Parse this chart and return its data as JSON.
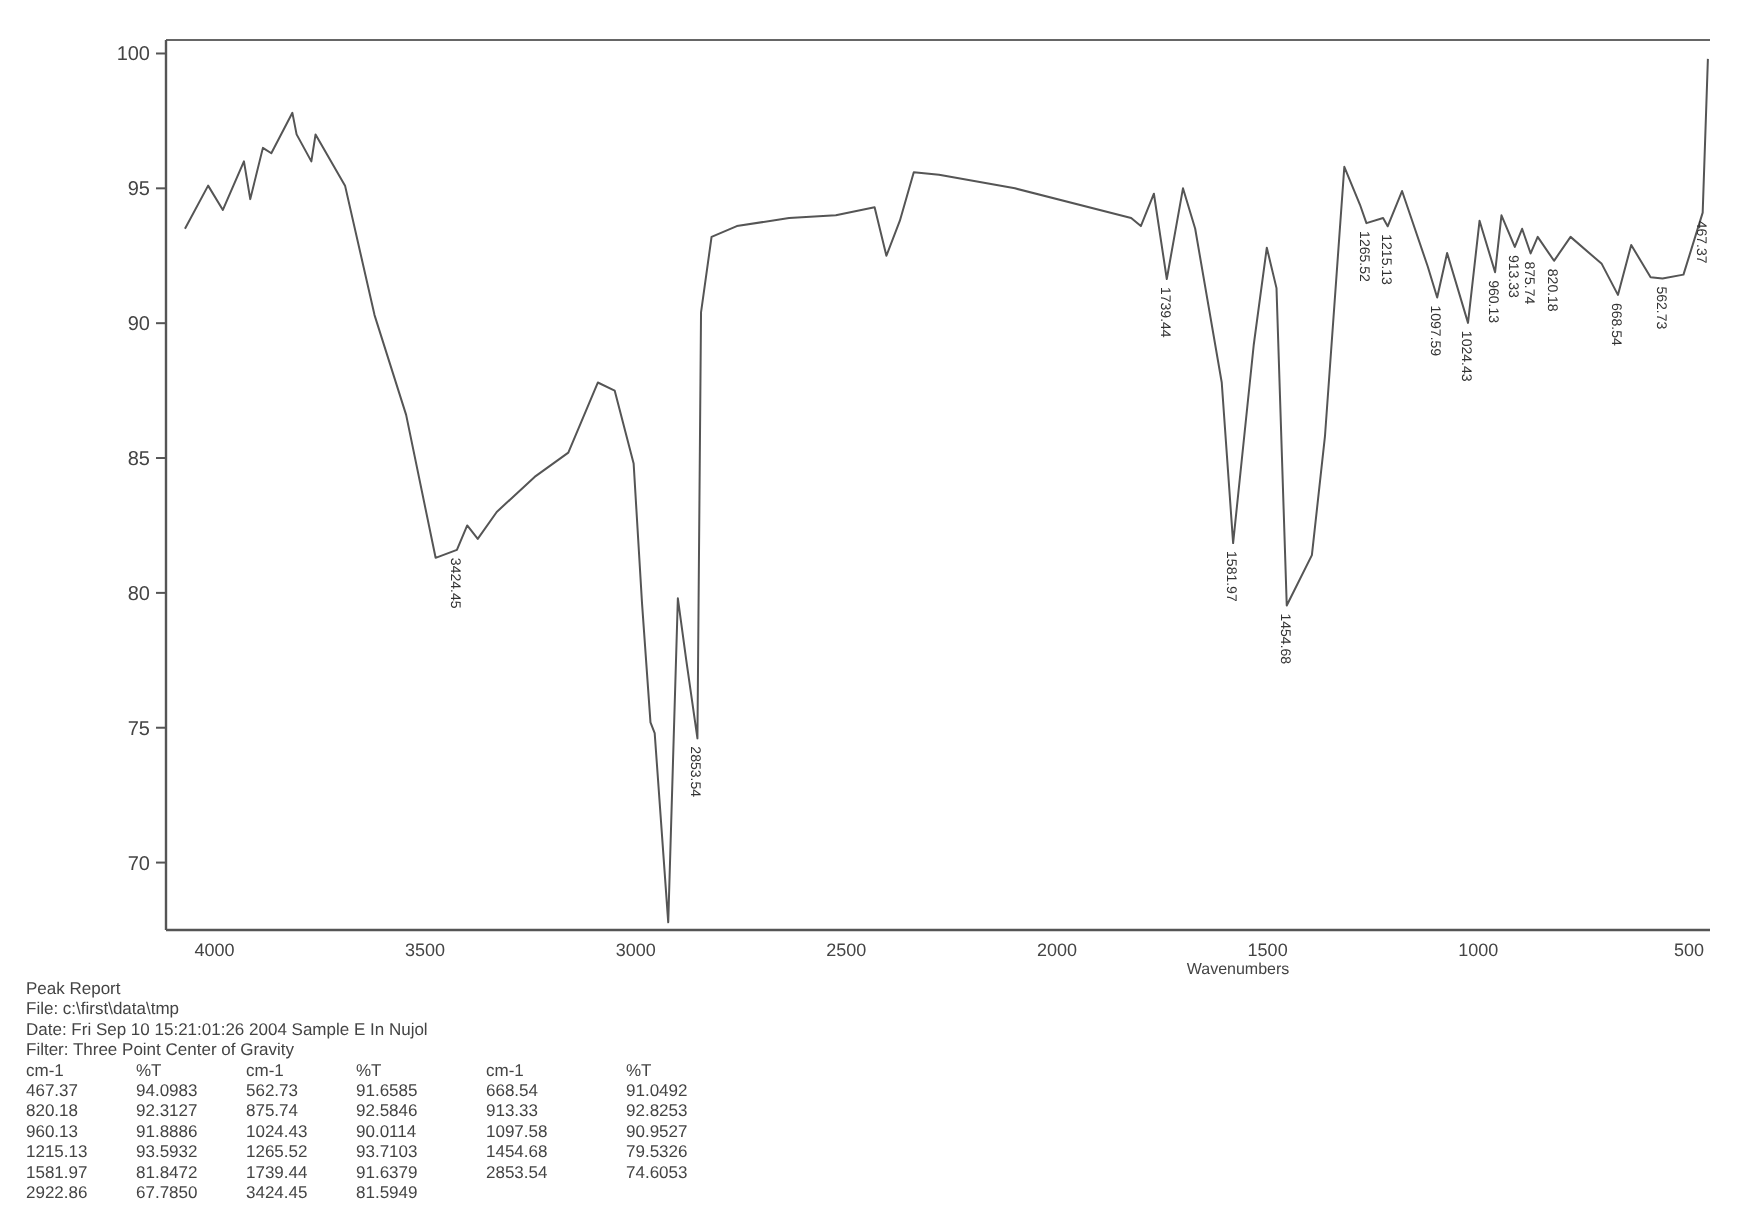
{
  "chart_data": {
    "type": "line",
    "xlabel": "Wavenumbers",
    "xlim": [
      4115,
      450
    ],
    "xticks": [
      4000,
      3500,
      3000,
      2500,
      2000,
      1500,
      1000,
      500
    ],
    "ylim": [
      67.5,
      100.5
    ],
    "yticks": [
      70,
      75,
      80,
      85,
      90,
      95,
      100
    ],
    "grid": false,
    "marker": "none",
    "line_style": "solid",
    "series": [
      {
        "color": "#555555",
        "x": [
          4070,
          4015,
          3980,
          3930,
          3915,
          3885,
          3865,
          3815,
          3805,
          3770,
          3760,
          3690,
          3620,
          3545,
          3475,
          3424.45,
          3400,
          3375,
          3330,
          3240,
          3160,
          3090,
          3050,
          3005,
          2985,
          2965,
          2955,
          2922.86,
          2900,
          2880,
          2853.54,
          2845,
          2820,
          2760,
          2636,
          2525,
          2433,
          2405,
          2373,
          2340,
          2280,
          2100,
          1824,
          1801,
          1770,
          1739.44,
          1701,
          1672,
          1609,
          1581.97,
          1533,
          1502,
          1479,
          1454.68,
          1395,
          1364,
          1318,
          1281,
          1265.52,
          1226,
          1215.13,
          1181,
          1120,
          1097.58,
          1074,
          1024.43,
          997,
          960.13,
          945,
          913.33,
          896,
          875.74,
          859,
          820.18,
          781,
          707,
          668.54,
          637,
          591,
          562.73,
          513,
          467.37,
          455
        ],
        "values": [
          93.5,
          95.1,
          94.2,
          96,
          94.6,
          96.5,
          96.3,
          97.8,
          97,
          96,
          97,
          95.1,
          90.3,
          86.6,
          81.3,
          81.5949,
          82.5,
          82,
          83,
          84.3,
          85.2,
          87.8,
          87.5,
          84.8,
          79.6,
          75.2,
          74.8,
          67.785,
          79.8,
          77.5,
          74.6053,
          90.4,
          93.2,
          93.6,
          93.9,
          94,
          94.3,
          92.5,
          93.8,
          95.6,
          95.5,
          95,
          93.9,
          93.6,
          94.8,
          91.6379,
          95,
          93.5,
          87.8,
          81.8472,
          89.2,
          92.8,
          91.3,
          79.5326,
          81.4,
          85.8,
          95.8,
          94.4,
          93.7103,
          93.9,
          93.5932,
          94.9,
          92.1,
          90.9527,
          92.6,
          90.0114,
          93.8,
          91.8886,
          94,
          92.8253,
          93.5,
          92.5846,
          93.2,
          92.3127,
          93.2,
          92.2,
          91.0492,
          92.9,
          91.7,
          91.6585,
          91.8,
          94.0983,
          99.8
        ]
      }
    ],
    "annotations": [
      {
        "text": "3424.45",
        "x": 3424.45,
        "y": 81.5949
      },
      {
        "text": "2853.54",
        "x": 2853.54,
        "y": 74.6053
      },
      {
        "text": "1739.44",
        "x": 1739.44,
        "y": 91.6379
      },
      {
        "text": "1581.97",
        "x": 1581.97,
        "y": 81.8472
      },
      {
        "text": "1454.68",
        "x": 1454.68,
        "y": 79.5326
      },
      {
        "text": "1265.52",
        "x": 1265.52,
        "y": 93.7103
      },
      {
        "text": "1215.13",
        "x": 1215.13,
        "y": 93.5932
      },
      {
        "text": "1097.59",
        "x": 1097.58,
        "y": 90.9527
      },
      {
        "text": "1024.43",
        "x": 1024.43,
        "y": 90.0114
      },
      {
        "text": "960.13",
        "x": 960.13,
        "y": 91.8886
      },
      {
        "text": "913.33",
        "x": 913.33,
        "y": 92.8253
      },
      {
        "text": "875.74",
        "x": 875.74,
        "y": 92.5846
      },
      {
        "text": "820.18",
        "x": 820.18,
        "y": 92.3127
      },
      {
        "text": "668.54",
        "x": 668.54,
        "y": 91.0492
      },
      {
        "text": "562.73",
        "x": 562.73,
        "y": 91.6585
      },
      {
        "text": "467.37",
        "x": 467.37,
        "y": 94.0983
      },
      "Peak Report",
      "File: c:\\first\\data\\tmp",
      "Date: Fri Sep 10 15:21:01:26 2004  Sample E In Nujol",
      "Filter: Three Point Center of Gravity",
      "cm-1\t%T\tcm-1\t%T\tcm-1\t%T",
      "467.37\t94.0983\t562.73\t91.6585\t668.54\t91.0492",
      "820.18\t92.3127\t875.74\t92.5846\t913.33\t92.8253",
      "960.13\t91.8886\t1024.43\t90.0114\t1097.58\t90.9527",
      "1215.13\t93.5932\t1265.52\t93.7103\t1454.68\t79.5326",
      "1581.97\t81.8472\t1739.44\t91.6379\t2853.54\t74.6053",
      "2922.86\t67.7850\t3424.45\t81.5949"
    ]
  }
}
